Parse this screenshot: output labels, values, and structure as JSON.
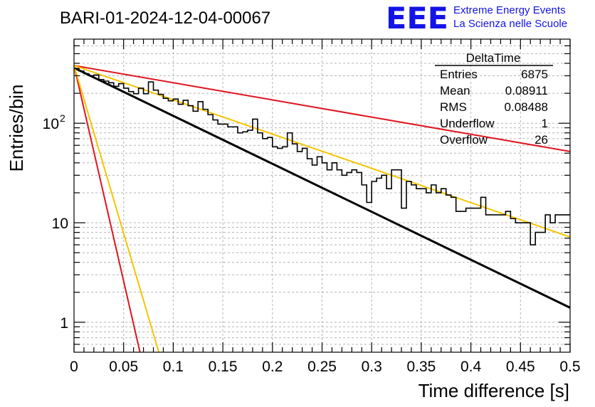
{
  "chart_data": {
    "type": "histogram",
    "title": "BARI-01-2024-12-04-00067",
    "xlabel": "Time difference [s]",
    "ylabel": "Entries/bin",
    "xlim": [
      0,
      0.5
    ],
    "ylim": [
      0.5,
      700
    ],
    "yscale": "log",
    "grid": true,
    "x_ticks": [
      0,
      0.05,
      0.1,
      0.15,
      0.2,
      0.25,
      0.3,
      0.35,
      0.4,
      0.45,
      0.5
    ],
    "x_tick_labels": [
      "0",
      "0.05",
      "0.1",
      "0.15",
      "0.2",
      "0.25",
      "0.3",
      "0.35",
      "0.4",
      "0.45",
      "0.5"
    ],
    "y_major_ticks": [
      1,
      10,
      100
    ],
    "y_tick_labels": [
      "1",
      "10",
      "10²"
    ],
    "bins": {
      "n": 100,
      "width": 0.005
    },
    "histogram_values": [
      355,
      335,
      315,
      300,
      305,
      275,
      265,
      255,
      235,
      250,
      225,
      208,
      198,
      225,
      198,
      260,
      215,
      195,
      178,
      168,
      175,
      155,
      170,
      150,
      132,
      165,
      138,
      122,
      108,
      98,
      98,
      92,
      92,
      80,
      82,
      85,
      110,
      80,
      70,
      72,
      58,
      56,
      58,
      80,
      62,
      52,
      56,
      44,
      38,
      46,
      40,
      34,
      40,
      34,
      30,
      32,
      34,
      32,
      24,
      16,
      26,
      28,
      30,
      22,
      34,
      34,
      14,
      26,
      24,
      22,
      22,
      20,
      24,
      20,
      22,
      19,
      18,
      13,
      13,
      14,
      14,
      14,
      18,
      12,
      12,
      12,
      12,
      13,
      11,
      10,
      10,
      10,
      6,
      8,
      8,
      12,
      10,
      12,
      12,
      12
    ],
    "curves": [
      {
        "name": "exponential fit",
        "color": "#000000",
        "width": 3,
        "points": [
          [
            0,
            360
          ],
          [
            0.5,
            1.4
          ]
        ]
      },
      {
        "name": "upper rate bound (red)",
        "color": "#e0141e",
        "width": 2,
        "points": [
          [
            0,
            380
          ],
          [
            0.5,
            52
          ]
        ]
      },
      {
        "name": "upper rate bound (yellow)",
        "color": "#f5c400",
        "width": 2,
        "points": [
          [
            0,
            380
          ],
          [
            0.5,
            7.2
          ]
        ]
      },
      {
        "name": "lower rate bound (red)",
        "color": "#e0141e",
        "width": 2,
        "points": [
          [
            0,
            380
          ],
          [
            0.0665,
            0.5
          ]
        ]
      },
      {
        "name": "lower rate bound (yellow)",
        "color": "#f5c400",
        "width": 2,
        "points": [
          [
            0,
            380
          ],
          [
            0.0855,
            0.5
          ]
        ]
      }
    ],
    "stats_box": {
      "title": "DeltaTime",
      "rows": [
        {
          "label": "Entries",
          "value": "6875"
        },
        {
          "label": "Mean",
          "value": "0.08911"
        },
        {
          "label": "RMS",
          "value": "0.08488"
        },
        {
          "label": "Underflow",
          "value": "1"
        },
        {
          "label": "Overflow",
          "value": "26"
        }
      ]
    }
  },
  "logo": {
    "mark": "EEE",
    "line1": "Extreme Energy Events",
    "line2": "La Scienza nelle Scuole",
    "color": "#1414e6"
  }
}
